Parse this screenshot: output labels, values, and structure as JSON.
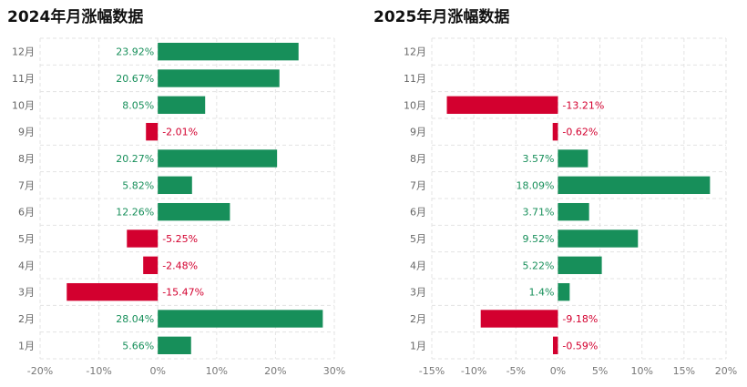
{
  "chart_data": [
    {
      "type": "bar",
      "orientation": "horizontal",
      "title": "2024年月涨幅数据",
      "categories": [
        "1月",
        "2月",
        "3月",
        "4月",
        "5月",
        "6月",
        "7月",
        "8月",
        "9月",
        "10月",
        "11月",
        "12月"
      ],
      "values": [
        5.66,
        28.04,
        -15.47,
        -2.48,
        -5.25,
        12.26,
        5.82,
        20.27,
        -2.01,
        8.05,
        20.67,
        23.92
      ],
      "labels": [
        "5.66%",
        "28.04%",
        "-15.47%",
        "-2.48%",
        "-5.25%",
        "12.26%",
        "5.82%",
        "20.27%",
        "-2.01%",
        "8.05%",
        "20.67%",
        "23.92%"
      ],
      "xlim": [
        -20,
        30
      ],
      "xticks": [
        -20,
        -10,
        0,
        10,
        20,
        30
      ],
      "xtick_labels": [
        "-20%",
        "-10%",
        "0%",
        "10%",
        "20%",
        "30%"
      ],
      "positive_color": "#178f5a",
      "negative_color": "#d3002f",
      "grid": true
    },
    {
      "type": "bar",
      "orientation": "horizontal",
      "title": "2025年月涨幅数据",
      "categories": [
        "1月",
        "2月",
        "3月",
        "4月",
        "5月",
        "6月",
        "7月",
        "8月",
        "9月",
        "10月",
        "11月",
        "12月"
      ],
      "values": [
        -0.59,
        -9.18,
        1.4,
        5.22,
        9.52,
        3.71,
        18.09,
        3.57,
        -0.62,
        -13.21,
        null,
        null
      ],
      "labels": [
        "-0.59%",
        "-9.18%",
        "1.4%",
        "5.22%",
        "9.52%",
        "3.71%",
        "18.09%",
        "3.57%",
        "-0.62%",
        "-13.21%",
        null,
        null
      ],
      "xlim": [
        -15,
        20
      ],
      "xticks": [
        -15,
        -10,
        -5,
        0,
        5,
        10,
        15,
        20
      ],
      "xtick_labels": [
        "-15%",
        "-10%",
        "-5%",
        "0%",
        "5%",
        "10%",
        "15%",
        "20%"
      ],
      "positive_color": "#178f5a",
      "negative_color": "#d3002f",
      "grid": true
    }
  ]
}
